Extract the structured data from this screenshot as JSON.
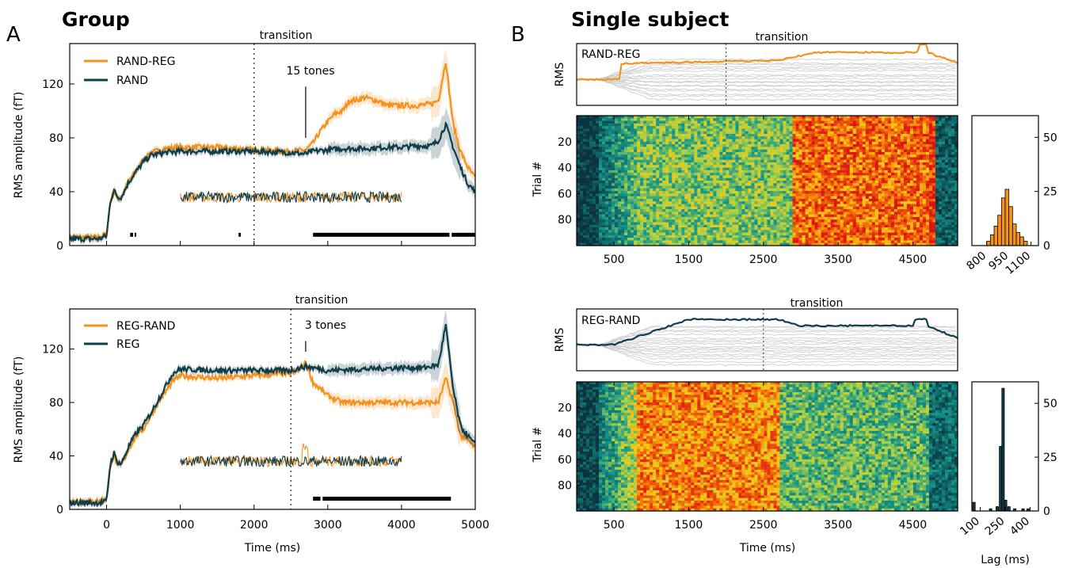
{
  "figure": {
    "panel_a_letter": "A",
    "panel_b_letter": "B",
    "panel_a_title": "Group",
    "panel_b_title": "Single subject",
    "transition_label": "transition",
    "rms_label": "RMS",
    "trial_label": "Trial #",
    "lag_label": "Lag (ms)",
    "time_label": "Time (ms)",
    "rms_amplitude_label": "RMS amplitude (fT)"
  },
  "colors": {
    "orange": "#f5921e",
    "dark": "#0f3d4a",
    "gray": "#c8c8c8"
  },
  "chart_data": [
    {
      "id": "A-top",
      "type": "line",
      "ylabel": "RMS amplitude (fT)",
      "xlabel": "",
      "xlim": [
        -500,
        5000
      ],
      "ylim": [
        0,
        150
      ],
      "xticks": [
        -500,
        0,
        1000,
        2000,
        3000,
        4000,
        5000
      ],
      "yticks": [
        0,
        40,
        80,
        120
      ],
      "transition_x": 2000,
      "annotation": {
        "text": "15 tones",
        "x": 2700,
        "y_from": 80,
        "y_to": 118
      },
      "legend_position": "top-left",
      "series": [
        {
          "name": "RAND-REG",
          "color": "orange",
          "points": [
            [
              -500,
              6
            ],
            [
              -100,
              6
            ],
            [
              0,
              8
            ],
            [
              50,
              32
            ],
            [
              100,
              40
            ],
            [
              150,
              35
            ],
            [
              200,
              36
            ],
            [
              300,
              48
            ],
            [
              400,
              55
            ],
            [
              500,
              64
            ],
            [
              600,
              69
            ],
            [
              800,
              72
            ],
            [
              1000,
              73
            ],
            [
              1500,
              73
            ],
            [
              2000,
              71
            ],
            [
              2500,
              70
            ],
            [
              2700,
              71
            ],
            [
              2800,
              76
            ],
            [
              2900,
              85
            ],
            [
              3000,
              92
            ],
            [
              3100,
              98
            ],
            [
              3200,
              100
            ],
            [
              3300,
              108
            ],
            [
              3400,
              108
            ],
            [
              3500,
              110
            ],
            [
              3700,
              107
            ],
            [
              3800,
              104
            ],
            [
              4000,
              104
            ],
            [
              4200,
              104
            ],
            [
              4400,
              105
            ],
            [
              4500,
              108
            ],
            [
              4600,
              137
            ],
            [
              4700,
              90
            ],
            [
              4800,
              70
            ],
            [
              4900,
              58
            ],
            [
              5000,
              50
            ]
          ]
        },
        {
          "name": "RAND",
          "color": "dark",
          "points": [
            [
              -500,
              5
            ],
            [
              -100,
              5
            ],
            [
              0,
              7
            ],
            [
              50,
              33
            ],
            [
              100,
              41
            ],
            [
              150,
              36
            ],
            [
              200,
              36
            ],
            [
              300,
              47
            ],
            [
              400,
              55
            ],
            [
              500,
              62
            ],
            [
              600,
              67
            ],
            [
              800,
              69
            ],
            [
              1000,
              70
            ],
            [
              1500,
              70
            ],
            [
              2000,
              70
            ],
            [
              2500,
              69
            ],
            [
              2700,
              68
            ],
            [
              2800,
              70
            ],
            [
              3000,
              71
            ],
            [
              3200,
              72
            ],
            [
              3500,
              72
            ],
            [
              3800,
              73
            ],
            [
              4000,
              73
            ],
            [
              4200,
              74
            ],
            [
              4400,
              74
            ],
            [
              4500,
              78
            ],
            [
              4600,
              90
            ],
            [
              4700,
              73
            ],
            [
              4800,
              58
            ],
            [
              4900,
              46
            ],
            [
              5000,
              40
            ]
          ]
        }
      ],
      "inset": {
        "x_range": [
          1000,
          4000
        ],
        "level": 36
      },
      "significance": [
        [
          320,
          360
        ],
        [
          380,
          400
        ],
        [
          1790,
          1820
        ],
        [
          2800,
          4650
        ],
        [
          4680,
          5000
        ]
      ]
    },
    {
      "id": "A-bottom",
      "type": "line",
      "ylabel": "RMS amplitude (fT)",
      "xlabel": "Time (ms)",
      "xlim": [
        -500,
        5000
      ],
      "ylim": [
        0,
        150
      ],
      "xticks": [
        -500,
        0,
        1000,
        2000,
        3000,
        4000,
        5000
      ],
      "xticklabels_shown": [
        0,
        1000,
        2000,
        3000,
        4000,
        5000
      ],
      "yticks": [
        0,
        40,
        80,
        120
      ],
      "transition_x": 2500,
      "annotation": {
        "text": "3 tones",
        "x": 2700,
        "y_from": 118,
        "y_to": 126
      },
      "legend_position": "top-left",
      "series": [
        {
          "name": "REG-RAND",
          "color": "orange",
          "points": [
            [
              -500,
              6
            ],
            [
              -100,
              6
            ],
            [
              0,
              8
            ],
            [
              50,
              33
            ],
            [
              100,
              40
            ],
            [
              150,
              34
            ],
            [
              200,
              33
            ],
            [
              300,
              45
            ],
            [
              400,
              55
            ],
            [
              500,
              60
            ],
            [
              600,
              70
            ],
            [
              700,
              80
            ],
            [
              800,
              88
            ],
            [
              900,
              96
            ],
            [
              1000,
              100
            ],
            [
              1500,
              98
            ],
            [
              2000,
              100
            ],
            [
              2500,
              102
            ],
            [
              2600,
              104
            ],
            [
              2700,
              110
            ],
            [
              2800,
              95
            ],
            [
              2900,
              90
            ],
            [
              3000,
              85
            ],
            [
              3200,
              80
            ],
            [
              3500,
              80
            ],
            [
              4000,
              80
            ],
            [
              4400,
              80
            ],
            [
              4500,
              80
            ],
            [
              4600,
              98
            ],
            [
              4700,
              80
            ],
            [
              4800,
              55
            ],
            [
              4900,
              52
            ],
            [
              5000,
              46
            ]
          ]
        },
        {
          "name": "REG",
          "color": "dark",
          "points": [
            [
              -500,
              5
            ],
            [
              -100,
              5
            ],
            [
              0,
              6
            ],
            [
              50,
              34
            ],
            [
              100,
              42
            ],
            [
              150,
              35
            ],
            [
              200,
              34
            ],
            [
              300,
              47
            ],
            [
              400,
              57
            ],
            [
              500,
              63
            ],
            [
              600,
              72
            ],
            [
              700,
              82
            ],
            [
              800,
              92
            ],
            [
              900,
              102
            ],
            [
              1000,
              105
            ],
            [
              1500,
              104
            ],
            [
              2000,
              104
            ],
            [
              2500,
              104
            ],
            [
              2700,
              107
            ],
            [
              3000,
              104
            ],
            [
              3500,
              105
            ],
            [
              4000,
              106
            ],
            [
              4300,
              106
            ],
            [
              4500,
              108
            ],
            [
              4600,
              138
            ],
            [
              4700,
              90
            ],
            [
              4800,
              62
            ],
            [
              4900,
              55
            ],
            [
              5000,
              48
            ]
          ]
        }
      ],
      "inset": {
        "x_range": [
          1000,
          4000
        ],
        "level": 36
      },
      "significance": [
        [
          2800,
          2900
        ],
        [
          2930,
          4670
        ]
      ]
    },
    {
      "id": "B-top",
      "type": "line",
      "ylabel": "RMS",
      "label": "RAND-REG",
      "xlim": [
        0,
        5100
      ],
      "transition_x": 2000,
      "highlight_color": "orange"
    },
    {
      "id": "B-top-heatmap",
      "type": "heatmap",
      "ylabel": "Trial #",
      "xlim": [
        0,
        5100
      ],
      "xticks": [
        500,
        1500,
        2500,
        3500,
        4500
      ],
      "yticks": [
        20,
        40,
        60,
        80
      ],
      "rows": 100,
      "colormap": "teal-yellow-red",
      "transition_x": 2900
    },
    {
      "id": "B-top-hist",
      "type": "bar",
      "xlim": [
        700,
        1150
      ],
      "xticks": [
        800,
        950,
        1100
      ],
      "yticks": [
        0,
        25,
        50
      ],
      "ylim": [
        0,
        60
      ],
      "color": "orange",
      "bins": [
        [
          800,
          2
        ],
        [
          825,
          5
        ],
        [
          850,
          9
        ],
        [
          875,
          14
        ],
        [
          900,
          22
        ],
        [
          925,
          26
        ],
        [
          950,
          18
        ],
        [
          975,
          10
        ],
        [
          1000,
          6
        ],
        [
          1025,
          4
        ],
        [
          1050,
          2
        ]
      ]
    },
    {
      "id": "B-bottom",
      "type": "line",
      "ylabel": "RMS",
      "label": "REG-RAND",
      "xlim": [
        0,
        5100
      ],
      "transition_x": 2500,
      "highlight_color": "dark"
    },
    {
      "id": "B-bottom-heatmap",
      "type": "heatmap",
      "ylabel": "Trial #",
      "xlabel": "Time (ms)",
      "xlim": [
        0,
        5100
      ],
      "xticks": [
        500,
        1500,
        2500,
        3500,
        4500
      ],
      "yticks": [
        20,
        40,
        60,
        80
      ],
      "rows": 100,
      "colormap": "teal-yellow-red",
      "transition_x": 2700
    },
    {
      "id": "B-bottom-hist",
      "type": "bar",
      "xlabel": "Lag (ms)",
      "xlim": [
        50,
        450
      ],
      "xticks": [
        100,
        250,
        400
      ],
      "yticks": [
        0,
        25,
        50
      ],
      "ylim": [
        0,
        60
      ],
      "color": "dark",
      "bins": [
        [
          55,
          4
        ],
        [
          75,
          0
        ],
        [
          155,
          1
        ],
        [
          195,
          2
        ],
        [
          215,
          30
        ],
        [
          230,
          57
        ],
        [
          245,
          5
        ],
        [
          265,
          2
        ],
        [
          300,
          1
        ],
        [
          350,
          1
        ],
        [
          380,
          1
        ]
      ]
    }
  ]
}
